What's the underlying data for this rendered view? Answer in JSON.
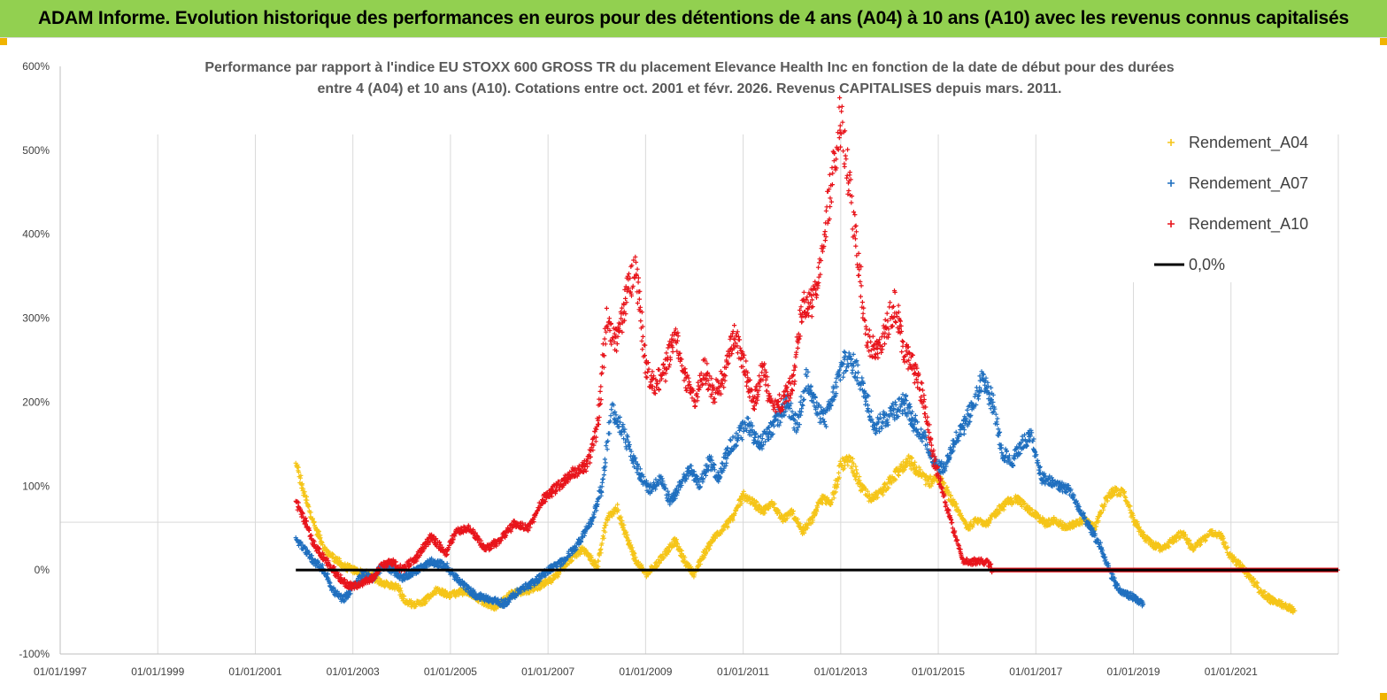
{
  "banner": {
    "title": "ADAM Informe. Evolution historique des performances en euros pour des détentions de 4 ans (A04) à 10 ans (A10) avec les revenus connus capitalisés"
  },
  "colors": {
    "banner_bg": "#92d050",
    "a04": "#f5c518",
    "a07": "#1f6fbf",
    "a10": "#e8141b",
    "zero": "#000000"
  },
  "chart_data": {
    "type": "scatter",
    "title_lines": [
      "Performance par rapport à l'indice EU STOXX 600 GROSS TR  du placement Elevance Health Inc en fonction de la date de début pour des durées",
      "entre 4 (A04) et 10 ans (A10).  Cotations entre oct. 2001 et févr. 2026. Revenus CAPITALISES  depuis mars. 2011."
    ],
    "xlabel": "",
    "ylabel": "",
    "x_range_years": [
      1997,
      2023.2
    ],
    "ylim": [
      -100,
      600
    ],
    "y_ticks": [
      -100,
      0,
      100,
      200,
      300,
      400,
      500,
      600
    ],
    "y_tick_labels": [
      "-100%",
      "0%",
      "100%",
      "200%",
      "300%",
      "400%",
      "500%",
      "600%"
    ],
    "x_ticks_years": [
      1997,
      1999,
      2001,
      2003,
      2005,
      2007,
      2009,
      2011,
      2013,
      2015,
      2017,
      2019,
      2021
    ],
    "x_tick_labels": [
      "01/01/1997",
      "01/01/1999",
      "01/01/2001",
      "01/01/2003",
      "01/01/2005",
      "01/01/2007",
      "01/01/2009",
      "01/01/2011",
      "01/01/2013",
      "01/01/2015",
      "01/01/2017",
      "01/01/2019",
      "01/01/2021"
    ],
    "grid": true,
    "legend_position": "top-right",
    "legend": [
      "Rendement_A04",
      "Rendement_A07",
      "Rendement_A10",
      "0,0%"
    ],
    "series": [
      {
        "name": "Rendement_A04",
        "color_key": "a04",
        "start": 2001.83,
        "end": 2022.3,
        "points": [
          [
            2001.83,
            125
          ],
          [
            2002.0,
            90
          ],
          [
            2002.2,
            55
          ],
          [
            2002.4,
            25
          ],
          [
            2002.6,
            15
          ],
          [
            2002.8,
            5
          ],
          [
            2003.0,
            0
          ],
          [
            2003.3,
            -5
          ],
          [
            2003.6,
            -15
          ],
          [
            2003.9,
            -20
          ],
          [
            2004.1,
            -40
          ],
          [
            2004.4,
            -40
          ],
          [
            2004.7,
            -25
          ],
          [
            2005.0,
            -30
          ],
          [
            2005.3,
            -25
          ],
          [
            2005.6,
            -35
          ],
          [
            2005.9,
            -45
          ],
          [
            2006.2,
            -30
          ],
          [
            2006.5,
            -25
          ],
          [
            2006.8,
            -20
          ],
          [
            2007.1,
            -10
          ],
          [
            2007.4,
            10
          ],
          [
            2007.7,
            25
          ],
          [
            2008.0,
            5
          ],
          [
            2008.2,
            60
          ],
          [
            2008.4,
            75
          ],
          [
            2008.6,
            40
          ],
          [
            2008.8,
            10
          ],
          [
            2009.0,
            -5
          ],
          [
            2009.2,
            5
          ],
          [
            2009.4,
            20
          ],
          [
            2009.6,
            35
          ],
          [
            2009.8,
            10
          ],
          [
            2010.0,
            -5
          ],
          [
            2010.2,
            20
          ],
          [
            2010.4,
            40
          ],
          [
            2010.6,
            50
          ],
          [
            2010.8,
            65
          ],
          [
            2011.0,
            90
          ],
          [
            2011.2,
            80
          ],
          [
            2011.4,
            70
          ],
          [
            2011.6,
            80
          ],
          [
            2011.8,
            60
          ],
          [
            2012.0,
            70
          ],
          [
            2012.2,
            45
          ],
          [
            2012.4,
            60
          ],
          [
            2012.6,
            85
          ],
          [
            2012.8,
            80
          ],
          [
            2013.0,
            125
          ],
          [
            2013.2,
            130
          ],
          [
            2013.4,
            100
          ],
          [
            2013.6,
            85
          ],
          [
            2013.8,
            90
          ],
          [
            2014.0,
            105
          ],
          [
            2014.2,
            120
          ],
          [
            2014.4,
            130
          ],
          [
            2014.6,
            115
          ],
          [
            2014.8,
            105
          ],
          [
            2015.0,
            110
          ],
          [
            2015.2,
            90
          ],
          [
            2015.4,
            70
          ],
          [
            2015.6,
            50
          ],
          [
            2015.8,
            60
          ],
          [
            2016.0,
            55
          ],
          [
            2016.2,
            70
          ],
          [
            2016.4,
            80
          ],
          [
            2016.6,
            85
          ],
          [
            2016.8,
            75
          ],
          [
            2017.0,
            65
          ],
          [
            2017.2,
            55
          ],
          [
            2017.4,
            60
          ],
          [
            2017.6,
            50
          ],
          [
            2017.8,
            55
          ],
          [
            2018.0,
            60
          ],
          [
            2018.2,
            50
          ],
          [
            2018.4,
            80
          ],
          [
            2018.6,
            95
          ],
          [
            2018.8,
            90
          ],
          [
            2019.0,
            60
          ],
          [
            2019.2,
            40
          ],
          [
            2019.4,
            30
          ],
          [
            2019.6,
            25
          ],
          [
            2019.8,
            35
          ],
          [
            2020.0,
            45
          ],
          [
            2020.2,
            25
          ],
          [
            2020.4,
            35
          ],
          [
            2020.6,
            45
          ],
          [
            2020.8,
            40
          ],
          [
            2021.0,
            15
          ],
          [
            2021.2,
            5
          ],
          [
            2021.4,
            -10
          ],
          [
            2021.6,
            -25
          ],
          [
            2021.8,
            -35
          ],
          [
            2022.0,
            -40
          ],
          [
            2022.3,
            -48
          ]
        ]
      },
      {
        "name": "Rendement_A07",
        "color_key": "a07",
        "start": 2001.83,
        "end": 2019.2,
        "points": [
          [
            2001.83,
            35
          ],
          [
            2002.0,
            25
          ],
          [
            2002.2,
            10
          ],
          [
            2002.4,
            0
          ],
          [
            2002.6,
            -25
          ],
          [
            2002.8,
            -35
          ],
          [
            2003.0,
            -20
          ],
          [
            2003.2,
            -5
          ],
          [
            2003.4,
            -10
          ],
          [
            2003.6,
            5
          ],
          [
            2003.8,
            0
          ],
          [
            2004.0,
            -10
          ],
          [
            2004.3,
            0
          ],
          [
            2004.6,
            10
          ],
          [
            2004.9,
            5
          ],
          [
            2005.2,
            -15
          ],
          [
            2005.5,
            -30
          ],
          [
            2005.8,
            -35
          ],
          [
            2006.1,
            -40
          ],
          [
            2006.4,
            -25
          ],
          [
            2006.7,
            -15
          ],
          [
            2007.0,
            0
          ],
          [
            2007.3,
            10
          ],
          [
            2007.6,
            30
          ],
          [
            2007.9,
            60
          ],
          [
            2008.1,
            100
          ],
          [
            2008.3,
            190
          ],
          [
            2008.5,
            170
          ],
          [
            2008.7,
            140
          ],
          [
            2008.9,
            110
          ],
          [
            2009.1,
            95
          ],
          [
            2009.3,
            110
          ],
          [
            2009.5,
            80
          ],
          [
            2009.7,
            100
          ],
          [
            2009.9,
            120
          ],
          [
            2010.1,
            100
          ],
          [
            2010.3,
            130
          ],
          [
            2010.5,
            110
          ],
          [
            2010.7,
            145
          ],
          [
            2010.9,
            160
          ],
          [
            2011.1,
            175
          ],
          [
            2011.3,
            150
          ],
          [
            2011.5,
            160
          ],
          [
            2011.7,
            180
          ],
          [
            2011.9,
            200
          ],
          [
            2012.1,
            170
          ],
          [
            2012.3,
            230
          ],
          [
            2012.5,
            190
          ],
          [
            2012.7,
            180
          ],
          [
            2012.9,
            220
          ],
          [
            2013.1,
            250
          ],
          [
            2013.3,
            240
          ],
          [
            2013.5,
            210
          ],
          [
            2013.7,
            170
          ],
          [
            2013.9,
            180
          ],
          [
            2014.1,
            190
          ],
          [
            2014.3,
            200
          ],
          [
            2014.5,
            175
          ],
          [
            2014.7,
            160
          ],
          [
            2014.9,
            130
          ],
          [
            2015.1,
            120
          ],
          [
            2015.3,
            150
          ],
          [
            2015.5,
            170
          ],
          [
            2015.7,
            195
          ],
          [
            2015.9,
            230
          ],
          [
            2016.1,
            200
          ],
          [
            2016.3,
            140
          ],
          [
            2016.5,
            130
          ],
          [
            2016.7,
            150
          ],
          [
            2016.9,
            160
          ],
          [
            2017.1,
            110
          ],
          [
            2017.3,
            105
          ],
          [
            2017.5,
            100
          ],
          [
            2017.7,
            95
          ],
          [
            2017.9,
            70
          ],
          [
            2018.1,
            50
          ],
          [
            2018.3,
            30
          ],
          [
            2018.5,
            0
          ],
          [
            2018.7,
            -25
          ],
          [
            2018.9,
            -30
          ],
          [
            2019.2,
            -40
          ]
        ]
      },
      {
        "name": "Rendement_A10",
        "color_key": "a10",
        "start": 2001.83,
        "end": 2023.2,
        "points": [
          [
            2001.83,
            80
          ],
          [
            2002.0,
            60
          ],
          [
            2002.2,
            30
          ],
          [
            2002.4,
            15
          ],
          [
            2002.6,
            0
          ],
          [
            2002.8,
            -15
          ],
          [
            2003.0,
            -20
          ],
          [
            2003.2,
            -15
          ],
          [
            2003.4,
            -10
          ],
          [
            2003.6,
            5
          ],
          [
            2003.8,
            10
          ],
          [
            2004.0,
            0
          ],
          [
            2004.3,
            15
          ],
          [
            2004.6,
            40
          ],
          [
            2004.9,
            20
          ],
          [
            2005.1,
            45
          ],
          [
            2005.4,
            50
          ],
          [
            2005.7,
            25
          ],
          [
            2006.0,
            35
          ],
          [
            2006.3,
            55
          ],
          [
            2006.6,
            50
          ],
          [
            2006.9,
            85
          ],
          [
            2007.2,
            100
          ],
          [
            2007.5,
            115
          ],
          [
            2007.8,
            125
          ],
          [
            2008.0,
            170
          ],
          [
            2008.2,
            300
          ],
          [
            2008.4,
            270
          ],
          [
            2008.6,
            330
          ],
          [
            2008.8,
            360
          ],
          [
            2009.0,
            240
          ],
          [
            2009.2,
            220
          ],
          [
            2009.4,
            240
          ],
          [
            2009.6,
            280
          ],
          [
            2009.8,
            230
          ],
          [
            2010.0,
            200
          ],
          [
            2010.2,
            240
          ],
          [
            2010.4,
            210
          ],
          [
            2010.6,
            230
          ],
          [
            2010.8,
            280
          ],
          [
            2011.0,
            250
          ],
          [
            2011.2,
            200
          ],
          [
            2011.4,
            240
          ],
          [
            2011.6,
            190
          ],
          [
            2011.8,
            200
          ],
          [
            2012.0,
            220
          ],
          [
            2012.2,
            310
          ],
          [
            2012.4,
            320
          ],
          [
            2012.6,
            370
          ],
          [
            2012.8,
            460
          ],
          [
            2013.0,
            540
          ],
          [
            2013.15,
            470
          ],
          [
            2013.3,
            400
          ],
          [
            2013.5,
            280
          ],
          [
            2013.7,
            260
          ],
          [
            2013.9,
            280
          ],
          [
            2014.1,
            320
          ],
          [
            2014.3,
            260
          ],
          [
            2014.5,
            240
          ],
          [
            2014.7,
            200
          ],
          [
            2014.9,
            130
          ],
          [
            2015.1,
            90
          ],
          [
            2015.3,
            50
          ],
          [
            2015.5,
            10
          ],
          [
            2015.8,
            10
          ],
          [
            2016.0,
            10
          ],
          [
            2016.1,
            0
          ],
          [
            2017.0,
            0
          ],
          [
            2019.0,
            0
          ],
          [
            2021.0,
            0
          ],
          [
            2023.2,
            0
          ]
        ]
      },
      {
        "name": "0,0%",
        "color_key": "zero",
        "start": 2001.83,
        "end": 2023.2,
        "points": [
          [
            2001.83,
            0
          ],
          [
            2023.2,
            0
          ]
        ]
      }
    ]
  }
}
